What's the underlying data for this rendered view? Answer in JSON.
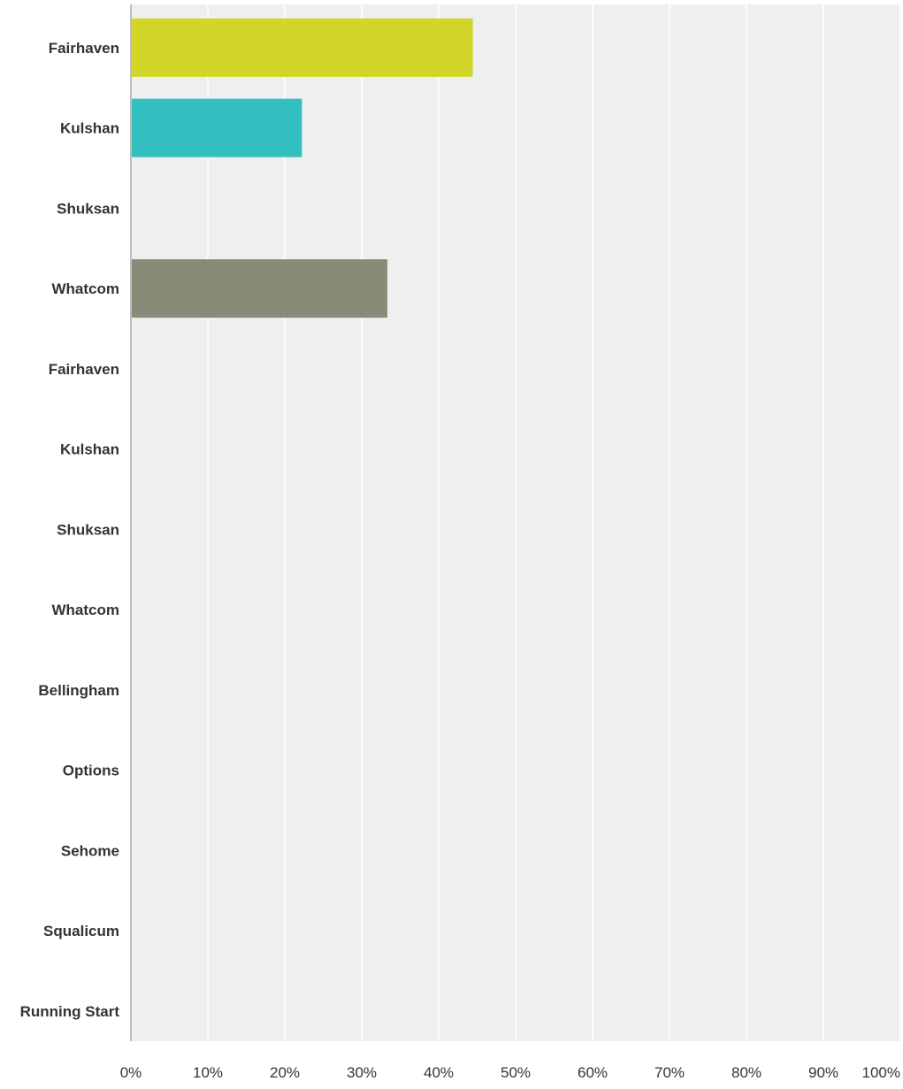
{
  "chart_data": {
    "type": "bar",
    "orientation": "horizontal",
    "categories": [
      "Fairhaven",
      "Kulshan",
      "Shuksan",
      "Whatcom",
      "Fairhaven",
      "Kulshan",
      "Shuksan",
      "Whatcom",
      "Bellingham",
      "Options",
      "Sehome",
      "Squalicum",
      "Running Start"
    ],
    "values": [
      44.44,
      22.22,
      0,
      33.33,
      0,
      0,
      0,
      0,
      0,
      0,
      0,
      0,
      0
    ],
    "bar_colors": [
      "#d1d628",
      "#31bfbf",
      "#d1d628",
      "#898a78",
      "#d1d628",
      "#31bfbf",
      "#d1d628",
      "#898a78",
      "#d1d628",
      "#31bfbf",
      "#d1d628",
      "#898a78",
      "#d1d628"
    ],
    "xlim": [
      0,
      100
    ],
    "x_ticks": [
      0,
      10,
      20,
      30,
      40,
      50,
      60,
      70,
      80,
      90,
      100
    ],
    "x_tick_labels": [
      "0%",
      "10%",
      "20%",
      "30%",
      "40%",
      "50%",
      "60%",
      "70%",
      "80%",
      "90%",
      "100%"
    ],
    "grid": true,
    "background_color": "#efefef",
    "grid_color": "#ffffff",
    "axis_color": "#bdbdbd"
  }
}
